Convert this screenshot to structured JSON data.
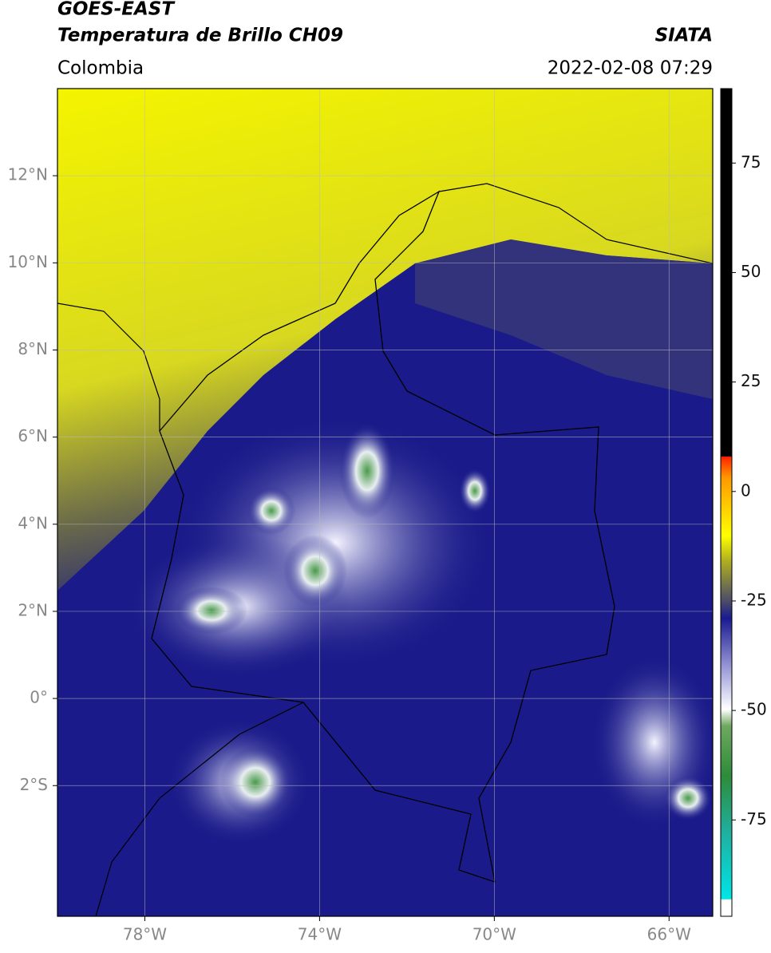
{
  "header": {
    "title": "GOES-EAST",
    "subtitle": "Temperatura de Brillo CH09",
    "region": "Colombia",
    "source": "SIATA",
    "datetime": "2022-02-08 07:29"
  },
  "map": {
    "lonlim": [
      -80,
      -65
    ],
    "latlim": [
      -5,
      14
    ],
    "lonticks": [
      {
        "value": -78,
        "label": "78°W"
      },
      {
        "value": -74,
        "label": "74°W"
      },
      {
        "value": -70,
        "label": "70°W"
      },
      {
        "value": -66,
        "label": "66°W"
      }
    ],
    "latticks": [
      {
        "value": 12,
        "label": "12°N"
      },
      {
        "value": 10,
        "label": "10°N"
      },
      {
        "value": 8,
        "label": "8°N"
      },
      {
        "value": 6,
        "label": "6°N"
      },
      {
        "value": 4,
        "label": "4°N"
      },
      {
        "value": 2,
        "label": "2°N"
      },
      {
        "value": 0,
        "label": "0°"
      },
      {
        "value": -2,
        "label": "2°S"
      }
    ],
    "grid": true,
    "colorbar": {
      "lim": [
        -97,
        92
      ],
      "ticks": [
        75,
        50,
        25,
        0,
        -25,
        -50,
        -75
      ]
    }
  }
}
